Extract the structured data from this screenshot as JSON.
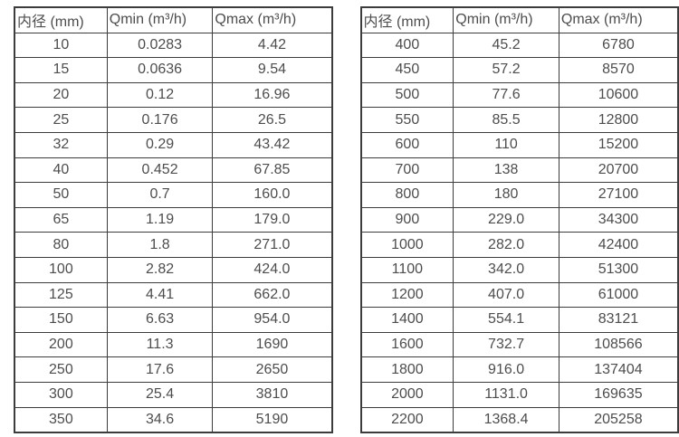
{
  "colors": {
    "border": "#3c3c3c",
    "text": "#4d4d4d",
    "background": "#ffffff"
  },
  "tables": [
    {
      "name": "flow-rate-table-dn10-dn350",
      "headers": [
        "内径 (mm)",
        "Qmin (m³/h)",
        "Qmax (m³/h)"
      ],
      "rows": [
        [
          "10",
          "0.0283",
          "4.42"
        ],
        [
          "15",
          "0.0636",
          "9.54"
        ],
        [
          "20",
          "0.12",
          "16.96"
        ],
        [
          "25",
          "0.176",
          "26.5"
        ],
        [
          "32",
          "0.29",
          "43.42"
        ],
        [
          "40",
          "0.452",
          "67.85"
        ],
        [
          "50",
          "0.7",
          "160.0"
        ],
        [
          "65",
          "1.19",
          "179.0"
        ],
        [
          "80",
          "1.8",
          "271.0"
        ],
        [
          "100",
          "2.82",
          "424.0"
        ],
        [
          "125",
          "4.41",
          "662.0"
        ],
        [
          "150",
          "6.63",
          "954.0"
        ],
        [
          "200",
          "11.3",
          "1690"
        ],
        [
          "250",
          "17.6",
          "2650"
        ],
        [
          "300",
          "25.4",
          "3810"
        ],
        [
          "350",
          "34.6",
          "5190"
        ]
      ]
    },
    {
      "name": "flow-rate-table-dn400-dn2200",
      "headers": [
        "内径 (mm)",
        "Qmin (m³/h)",
        "Qmax (m³/h)"
      ],
      "rows": [
        [
          "400",
          "45.2",
          "6780"
        ],
        [
          "450",
          "57.2",
          "8570"
        ],
        [
          "500",
          "77.6",
          "10600"
        ],
        [
          "550",
          "85.5",
          "12800"
        ],
        [
          "600",
          "110",
          "15200"
        ],
        [
          "700",
          "138",
          "20700"
        ],
        [
          "800",
          "180",
          "27100"
        ],
        [
          "900",
          "229.0",
          "34300"
        ],
        [
          "1000",
          "282.0",
          "42400"
        ],
        [
          "1100",
          "342.0",
          "51300"
        ],
        [
          "1200",
          "407.0",
          "61000"
        ],
        [
          "1400",
          "554.1",
          "83121"
        ],
        [
          "1600",
          "732.7",
          "108566"
        ],
        [
          "1800",
          "916.0",
          "137404"
        ],
        [
          "2000",
          "1131.0",
          "169635"
        ],
        [
          "2200",
          "1368.4",
          "205258"
        ]
      ]
    }
  ]
}
